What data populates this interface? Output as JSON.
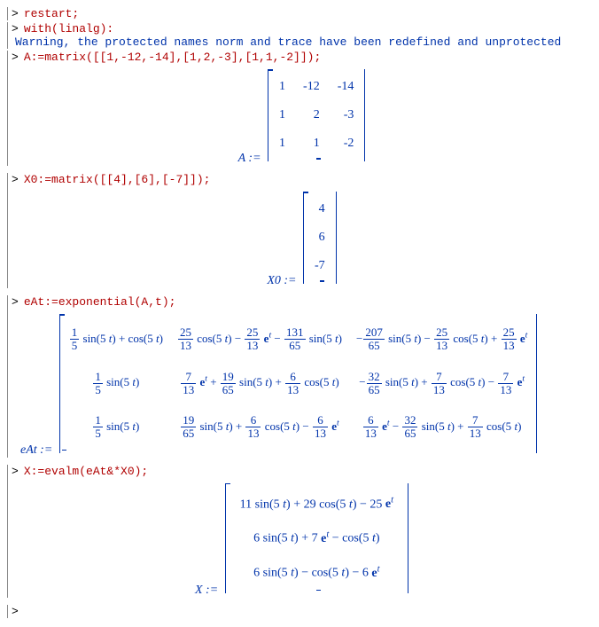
{
  "colors": {
    "command": "#b00000",
    "output": "#0033aa",
    "border": "#888888",
    "background": "#ffffff"
  },
  "typography": {
    "mono_family": "Courier New",
    "serif_family": "Times New Roman",
    "base_fontsize": 13
  },
  "blocks": {
    "restart": {
      "cmd": "restart;"
    },
    "with": {
      "cmd": "with(linalg):",
      "warning": "Warning, the protected names norm and trace have been redefined and unprotected"
    },
    "A": {
      "cmd": "A:=matrix([[1,-12,-14],[1,2,-3],[1,1,-2]]);",
      "lhs": "A :=",
      "rows": [
        [
          "1",
          "-12",
          "-14"
        ],
        [
          "1",
          "2",
          "-3"
        ],
        [
          "1",
          "1",
          "-2"
        ]
      ]
    },
    "X0": {
      "cmd": "X0:=matrix([[4],[6],[-7]]);",
      "lhs": "X0 :=",
      "rows": [
        [
          "4"
        ],
        [
          "6"
        ],
        [
          "-7"
        ]
      ]
    },
    "eAt": {
      "cmd": "eAt:=exponential(A,t);",
      "lhs": "eAt :=",
      "cells": [
        [
          {
            "type": "expr",
            "parts": [
              {
                "t": "frac",
                "n": "1",
                "d": "5"
              },
              {
                "t": "txt",
                "v": " sin(5 "
              },
              {
                "t": "i",
                "v": "t"
              },
              {
                "t": "txt",
                "v": ") + cos(5 "
              },
              {
                "t": "i",
                "v": "t"
              },
              {
                "t": "txt",
                "v": ")"
              }
            ]
          },
          {
            "type": "expr",
            "parts": [
              {
                "t": "frac",
                "n": "25",
                "d": "13"
              },
              {
                "t": "txt",
                "v": " cos(5 "
              },
              {
                "t": "i",
                "v": "t"
              },
              {
                "t": "txt",
                "v": ") − "
              },
              {
                "t": "frac",
                "n": "25",
                "d": "13"
              },
              {
                "t": "txt",
                "v": " "
              },
              {
                "t": "e"
              },
              {
                "t": "txt",
                "v": " − "
              },
              {
                "t": "frac",
                "n": "131",
                "d": "65"
              },
              {
                "t": "txt",
                "v": " sin(5 "
              },
              {
                "t": "i",
                "v": "t"
              },
              {
                "t": "txt",
                "v": ")"
              }
            ]
          },
          {
            "type": "expr",
            "parts": [
              {
                "t": "txt",
                "v": "−"
              },
              {
                "t": "frac",
                "n": "207",
                "d": "65"
              },
              {
                "t": "txt",
                "v": " sin(5 "
              },
              {
                "t": "i",
                "v": "t"
              },
              {
                "t": "txt",
                "v": ") − "
              },
              {
                "t": "frac",
                "n": "25",
                "d": "13"
              },
              {
                "t": "txt",
                "v": " cos(5 "
              },
              {
                "t": "i",
                "v": "t"
              },
              {
                "t": "txt",
                "v": ") + "
              },
              {
                "t": "frac",
                "n": "25",
                "d": "13"
              },
              {
                "t": "txt",
                "v": " "
              },
              {
                "t": "e"
              }
            ]
          }
        ],
        [
          {
            "type": "expr",
            "parts": [
              {
                "t": "frac",
                "n": "1",
                "d": "5"
              },
              {
                "t": "txt",
                "v": " sin(5 "
              },
              {
                "t": "i",
                "v": "t"
              },
              {
                "t": "txt",
                "v": ")"
              }
            ]
          },
          {
            "type": "expr",
            "parts": [
              {
                "t": "frac",
                "n": "7",
                "d": "13"
              },
              {
                "t": "txt",
                "v": " "
              },
              {
                "t": "e"
              },
              {
                "t": "txt",
                "v": " + "
              },
              {
                "t": "frac",
                "n": "19",
                "d": "65"
              },
              {
                "t": "txt",
                "v": " sin(5 "
              },
              {
                "t": "i",
                "v": "t"
              },
              {
                "t": "txt",
                "v": ") + "
              },
              {
                "t": "frac",
                "n": "6",
                "d": "13"
              },
              {
                "t": "txt",
                "v": " cos(5 "
              },
              {
                "t": "i",
                "v": "t"
              },
              {
                "t": "txt",
                "v": ")"
              }
            ]
          },
          {
            "type": "expr",
            "parts": [
              {
                "t": "txt",
                "v": "−"
              },
              {
                "t": "frac",
                "n": "32",
                "d": "65"
              },
              {
                "t": "txt",
                "v": " sin(5 "
              },
              {
                "t": "i",
                "v": "t"
              },
              {
                "t": "txt",
                "v": ") + "
              },
              {
                "t": "frac",
                "n": "7",
                "d": "13"
              },
              {
                "t": "txt",
                "v": " cos(5 "
              },
              {
                "t": "i",
                "v": "t"
              },
              {
                "t": "txt",
                "v": ") − "
              },
              {
                "t": "frac",
                "n": "7",
                "d": "13"
              },
              {
                "t": "txt",
                "v": " "
              },
              {
                "t": "e"
              }
            ]
          }
        ],
        [
          {
            "type": "expr",
            "parts": [
              {
                "t": "frac",
                "n": "1",
                "d": "5"
              },
              {
                "t": "txt",
                "v": " sin(5 "
              },
              {
                "t": "i",
                "v": "t"
              },
              {
                "t": "txt",
                "v": ")"
              }
            ]
          },
          {
            "type": "expr",
            "parts": [
              {
                "t": "frac",
                "n": "19",
                "d": "65"
              },
              {
                "t": "txt",
                "v": " sin(5 "
              },
              {
                "t": "i",
                "v": "t"
              },
              {
                "t": "txt",
                "v": ") + "
              },
              {
                "t": "frac",
                "n": "6",
                "d": "13"
              },
              {
                "t": "txt",
                "v": " cos(5 "
              },
              {
                "t": "i",
                "v": "t"
              },
              {
                "t": "txt",
                "v": ") − "
              },
              {
                "t": "frac",
                "n": "6",
                "d": "13"
              },
              {
                "t": "txt",
                "v": " "
              },
              {
                "t": "e"
              }
            ]
          },
          {
            "type": "expr",
            "parts": [
              {
                "t": "frac",
                "n": "6",
                "d": "13"
              },
              {
                "t": "txt",
                "v": " "
              },
              {
                "t": "e"
              },
              {
                "t": "txt",
                "v": " − "
              },
              {
                "t": "frac",
                "n": "32",
                "d": "65"
              },
              {
                "t": "txt",
                "v": " sin(5 "
              },
              {
                "t": "i",
                "v": "t"
              },
              {
                "t": "txt",
                "v": ") + "
              },
              {
                "t": "frac",
                "n": "7",
                "d": "13"
              },
              {
                "t": "txt",
                "v": " cos(5 "
              },
              {
                "t": "i",
                "v": "t"
              },
              {
                "t": "txt",
                "v": ")"
              }
            ]
          }
        ]
      ]
    },
    "X": {
      "cmd": "X:=evalm(eAt&*X0);",
      "lhs": "X :=",
      "cells": [
        [
          {
            "type": "expr",
            "parts": [
              {
                "t": "txt",
                "v": "11 sin(5 "
              },
              {
                "t": "i",
                "v": "t"
              },
              {
                "t": "txt",
                "v": ") + 29 cos(5 "
              },
              {
                "t": "i",
                "v": "t"
              },
              {
                "t": "txt",
                "v": ") − 25 "
              },
              {
                "t": "e"
              }
            ]
          }
        ],
        [
          {
            "type": "expr",
            "parts": [
              {
                "t": "txt",
                "v": "6 sin(5 "
              },
              {
                "t": "i",
                "v": "t"
              },
              {
                "t": "txt",
                "v": ") + 7 "
              },
              {
                "t": "e"
              },
              {
                "t": "txt",
                "v": " − cos(5 "
              },
              {
                "t": "i",
                "v": "t"
              },
              {
                "t": "txt",
                "v": ")"
              }
            ]
          }
        ],
        [
          {
            "type": "expr",
            "parts": [
              {
                "t": "txt",
                "v": "6 sin(5 "
              },
              {
                "t": "i",
                "v": "t"
              },
              {
                "t": "txt",
                "v": ") − cos(5 "
              },
              {
                "t": "i",
                "v": "t"
              },
              {
                "t": "txt",
                "v": ") − 6 "
              },
              {
                "t": "e"
              }
            ]
          }
        ]
      ]
    },
    "empty": {
      "cmd": ""
    }
  }
}
